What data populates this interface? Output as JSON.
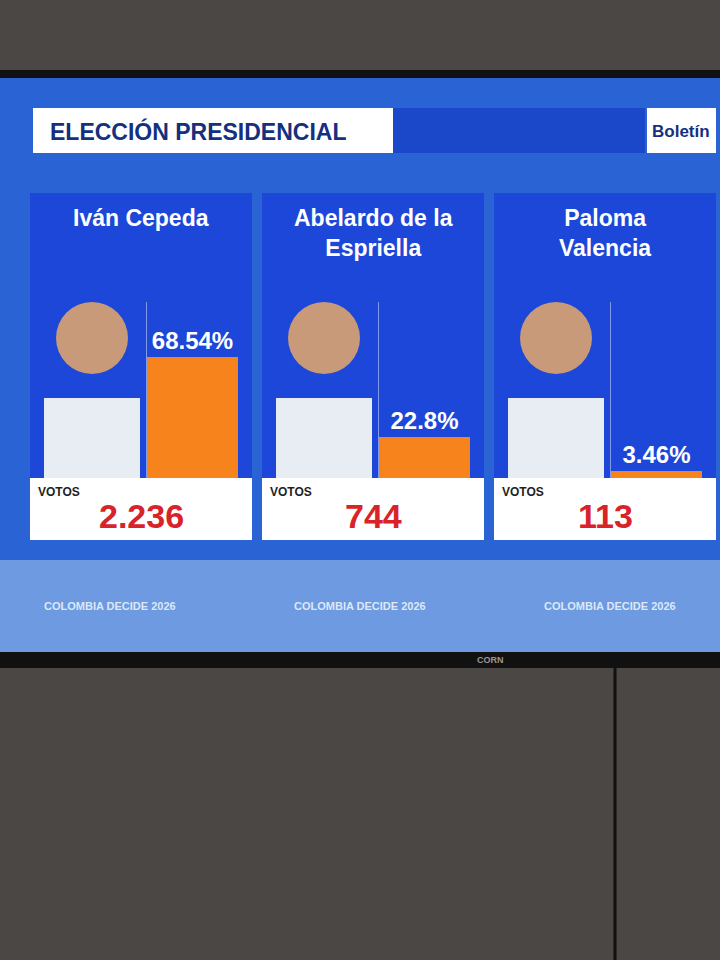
{
  "chart_data": {
    "type": "bar",
    "title": "ELECCIÓN PRESIDENCIAL",
    "subtitle": "Boletín",
    "categories": [
      "Iván Cepeda",
      "Abelardo de la Espriella",
      "Paloma Valencia"
    ],
    "values": [
      68.54,
      22.8,
      3.46
    ],
    "value_labels": [
      "68.54%",
      "22.8%",
      "3.46%"
    ],
    "color": "#f7831c",
    "ylim": [
      0,
      100
    ],
    "data_labels": true,
    "tick_labels": false,
    "votes": {
      "label": "VOTOS",
      "values": [
        2236,
        744,
        113
      ],
      "value_labels": [
        "2.236",
        "744",
        "113"
      ]
    },
    "annotations": [
      "COLOMBIA DECIDE 2026",
      "CORN"
    ]
  }
}
